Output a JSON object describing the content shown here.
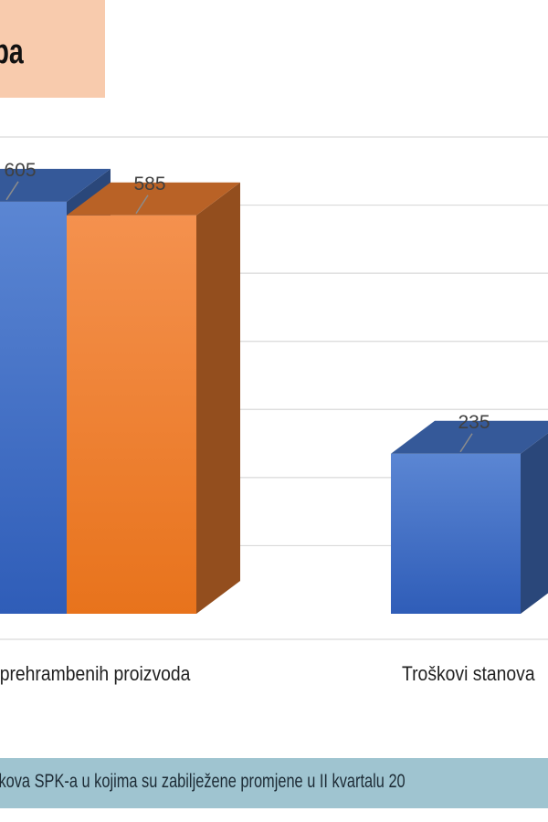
{
  "header": {
    "title": "pa"
  },
  "caption": {
    "text": "kova SPK-a u kojima su zabilježene promjene u II kvartalu 20"
  },
  "colors": {
    "series_blue": "#4472c4",
    "series_orange": "#ed7d31",
    "title_bg": "#f8cbad",
    "caption_bg": "#9fc4d0",
    "grid": "#d9d9d9"
  },
  "chart_data": {
    "type": "bar",
    "categories": [
      "i prehrambenih proizvoda",
      "Troškovi stanova"
    ],
    "series": [
      {
        "values": [
          605,
          235
        ]
      },
      {
        "values": [
          585,
          null
        ]
      }
    ],
    "data_labels": [
      "605",
      "585",
      "235"
    ],
    "ylim": [
      0,
      700
    ],
    "grid": true,
    "legend": "none"
  }
}
